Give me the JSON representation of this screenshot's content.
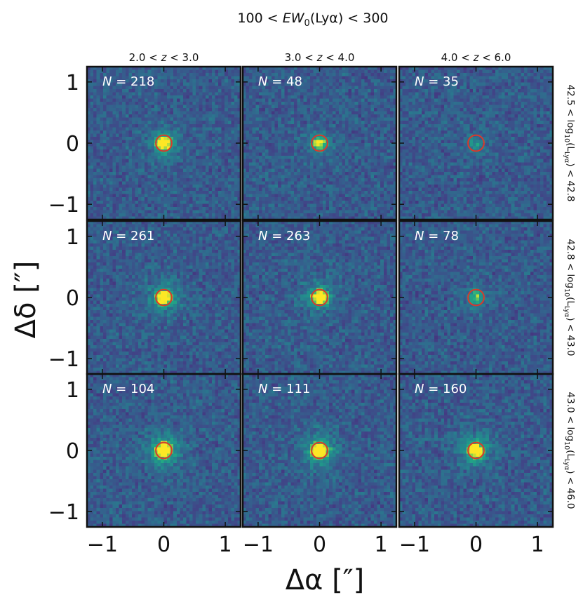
{
  "chart_data": {
    "type": "heatmap",
    "title": "100 < EW₀(Lyα) < 300",
    "title_parts": {
      "pre": "100 < ",
      "em": "EW",
      "sub": "0",
      "post": "(Lyα) < 300"
    },
    "xlabel": "Δα [″]",
    "ylabel": "Δδ [″]",
    "xlim": [
      -1.25,
      1.25
    ],
    "ylim": [
      -1.25,
      1.25
    ],
    "xticks": [
      -1,
      0,
      1
    ],
    "yticks": [
      -1,
      0,
      1
    ],
    "tick_labels": [
      "−1",
      "0",
      "1"
    ],
    "colormap": "viridis",
    "circle_color": "#d93a2b",
    "circle_radius_arcsec": 0.13,
    "columns": [
      {
        "label": "2.0 < z < 3.0",
        "pre": "2.0 < ",
        "var": "z",
        "post": " < 3.0"
      },
      {
        "label": "3.0 < z < 4.0",
        "pre": "3.0 < ",
        "var": "z",
        "post": " < 4.0"
      },
      {
        "label": "4.0 < z < 6.0",
        "pre": "4.0 < ",
        "var": "z",
        "post": " < 6.0"
      }
    ],
    "rows": [
      {
        "label": "42.5 < log10(LLyα) < 42.8",
        "pre": "42.5 < log",
        "sub": "10",
        "mid": "(L",
        "sub2": "Lyα",
        "post": ") < 42.8"
      },
      {
        "label": "42.8 < log10(LLyα) < 43.0",
        "pre": "42.8 < log",
        "sub": "10",
        "mid": "(L",
        "sub2": "Lyα",
        "post": ") < 43.0"
      },
      {
        "label": "43.0 < log10(LLyα) < 46.0",
        "pre": "43.0 < log",
        "sub": "10",
        "mid": "(L",
        "sub2": "Lyα",
        "post": ") < 46.0"
      }
    ],
    "panels": [
      {
        "row": 0,
        "col": 0,
        "N": 218,
        "n_text": " = 218",
        "peak": 1.0,
        "halo": 0.18
      },
      {
        "row": 0,
        "col": 1,
        "N": 48,
        "n_text": " = 48",
        "peak": 0.85,
        "halo": 0.08
      },
      {
        "row": 0,
        "col": 2,
        "N": 35,
        "n_text": " = 35",
        "peak": 0.35,
        "halo": 0.05
      },
      {
        "row": 1,
        "col": 0,
        "N": 261,
        "n_text": " = 261",
        "peak": 1.0,
        "halo": 0.22
      },
      {
        "row": 1,
        "col": 1,
        "N": 263,
        "n_text": " = 263",
        "peak": 1.0,
        "halo": 0.2
      },
      {
        "row": 1,
        "col": 2,
        "N": 78,
        "n_text": " = 78",
        "peak": 0.55,
        "halo": 0.06
      },
      {
        "row": 2,
        "col": 0,
        "N": 104,
        "n_text": " = 104",
        "peak": 1.0,
        "halo": 0.3
      },
      {
        "row": 2,
        "col": 1,
        "N": 111,
        "n_text": " = 111",
        "peak": 1.0,
        "halo": 0.28
      },
      {
        "row": 2,
        "col": 2,
        "N": 160,
        "n_text": " = 160",
        "peak": 1.0,
        "halo": 0.24
      }
    ]
  }
}
